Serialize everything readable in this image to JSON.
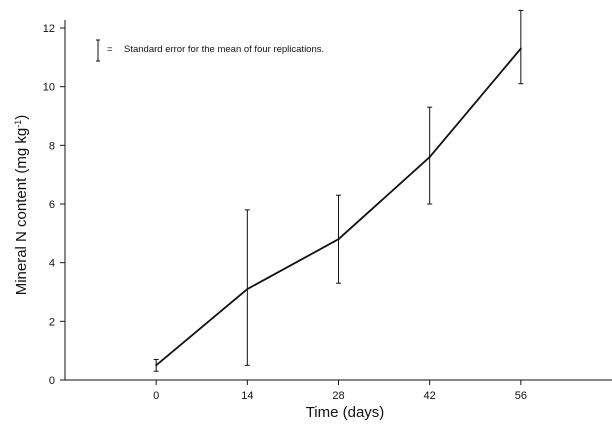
{
  "chart_data": {
    "type": "line",
    "xlabel": "Time (days)",
    "ylabel": {
      "main": "Mineral N content (mg kg",
      "superscript": "-1",
      "close": ")"
    },
    "x_ticks": [
      0,
      14,
      28,
      42,
      56
    ],
    "y_ticks": [
      0,
      2,
      4,
      6,
      8,
      10,
      12
    ],
    "xlim": [
      -14,
      70
    ],
    "ylim": [
      0,
      12
    ],
    "series": [
      {
        "x": [
          0,
          14,
          28,
          42,
          56
        ],
        "y": [
          0.5,
          3.1,
          4.8,
          7.6,
          11.3
        ],
        "error_low": [
          0.3,
          0.5,
          3.3,
          6.0,
          10.1
        ],
        "error_high": [
          0.7,
          5.8,
          6.3,
          9.3,
          12.6
        ]
      }
    ],
    "legend": {
      "symbol": "error-bar",
      "separator": "=",
      "text": "Standard error for the mean of four replications.",
      "position": "top-left"
    },
    "grid": false
  }
}
